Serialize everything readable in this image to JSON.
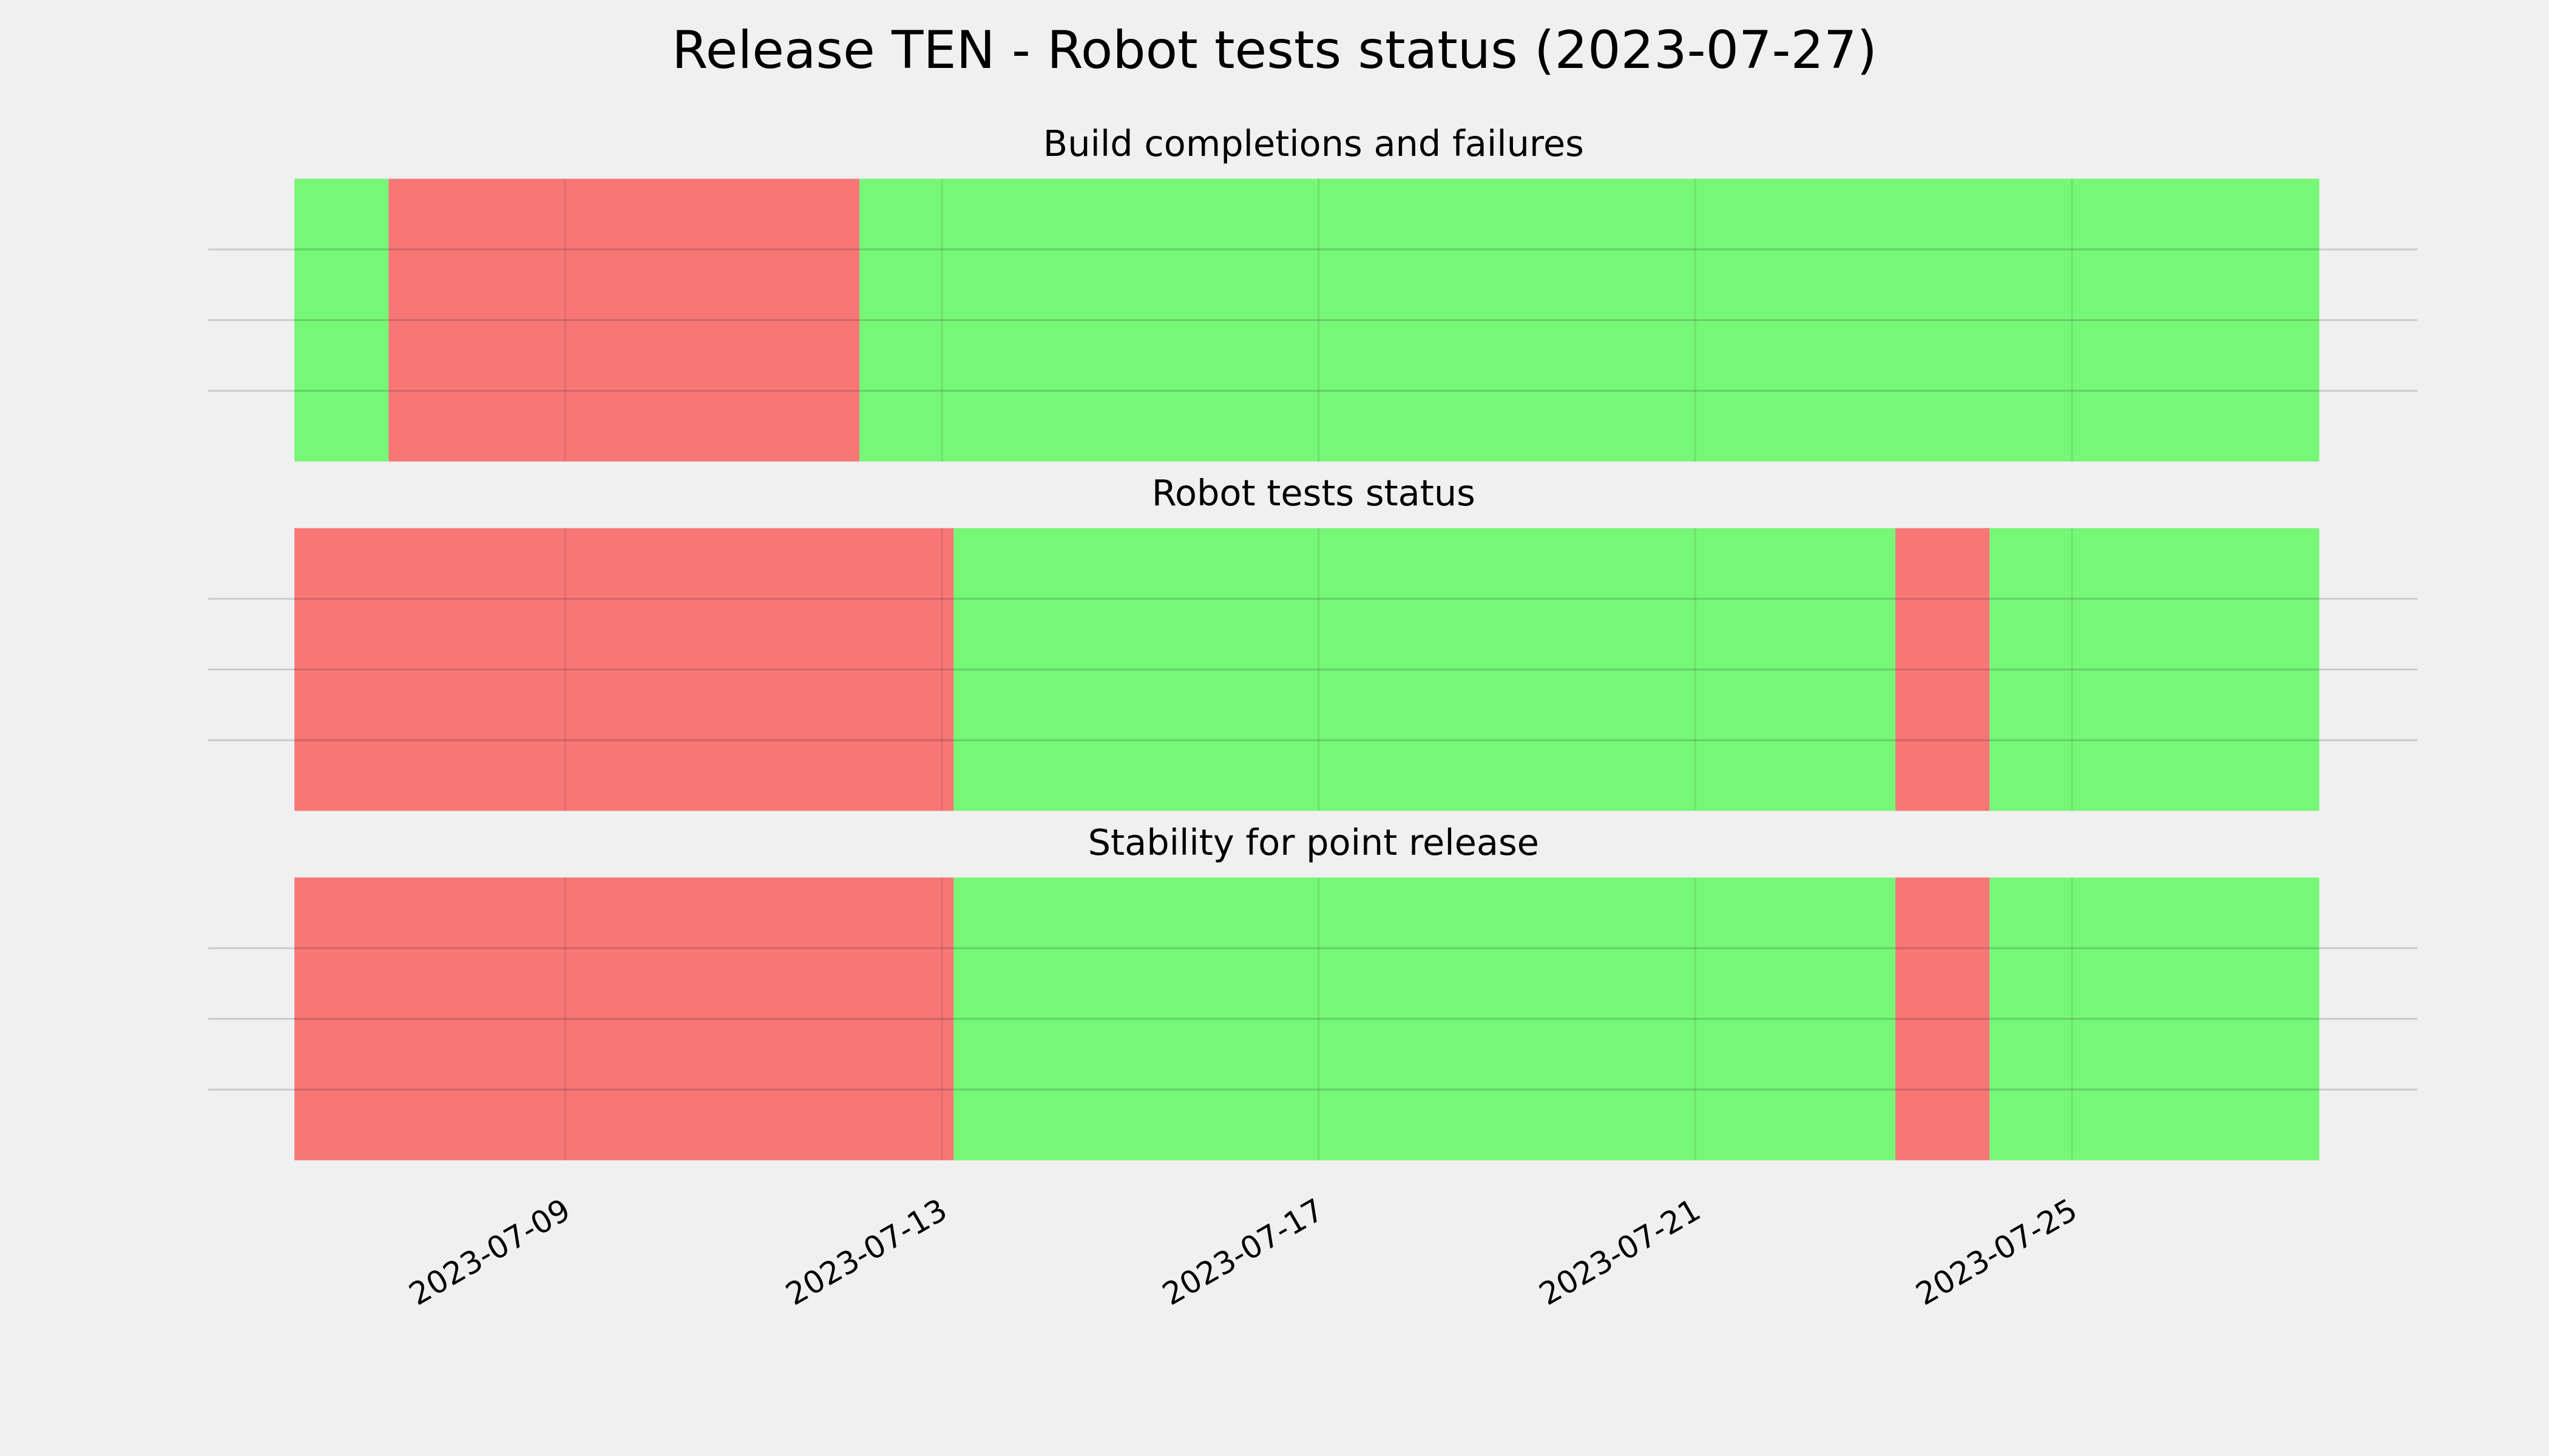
{
  "title": "Release TEN - Robot tests status (2023-07-27)",
  "chart_data": [
    {
      "type": "timeline",
      "title": "Build completions and failures",
      "segments": [
        {
          "start": "2023-07-06T03:00",
          "end": "2023-07-07T03:00",
          "color": "#77f777"
        },
        {
          "start": "2023-07-07T03:00",
          "end": "2023-07-12T03:00",
          "color": "#f77777"
        },
        {
          "start": "2023-07-12T03:00",
          "end": "2023-07-27T15:00",
          "color": "#77f777"
        }
      ],
      "xlim": [
        "2023-07-05T05:00",
        "2023-07-28T16:00"
      ],
      "xticks": [
        "2023-07-09",
        "2023-07-13",
        "2023-07-17",
        "2023-07-21",
        "2023-07-25"
      ],
      "ylim": [
        0,
        1
      ],
      "yticks": [
        0.25,
        0.5,
        0.75
      ],
      "grid": true
    },
    {
      "type": "timeline",
      "title": "Robot tests status",
      "segments": [
        {
          "start": "2023-07-06T03:00",
          "end": "2023-07-13T03:00",
          "color": "#f77777"
        },
        {
          "start": "2023-07-13T03:00",
          "end": "2023-07-23T03:00",
          "color": "#77f777"
        },
        {
          "start": "2023-07-23T03:00",
          "end": "2023-07-24T03:00",
          "color": "#f77777"
        },
        {
          "start": "2023-07-24T03:00",
          "end": "2023-07-27T15:00",
          "color": "#77f777"
        }
      ],
      "xlim": [
        "2023-07-05T05:00",
        "2023-07-28T16:00"
      ],
      "xticks": [
        "2023-07-09",
        "2023-07-13",
        "2023-07-17",
        "2023-07-21",
        "2023-07-25"
      ],
      "ylim": [
        0,
        1
      ],
      "yticks": [
        0.25,
        0.5,
        0.75
      ],
      "grid": true
    },
    {
      "type": "timeline",
      "title": "Stability for point release",
      "segments": [
        {
          "start": "2023-07-06T03:00",
          "end": "2023-07-13T03:00",
          "color": "#f77777"
        },
        {
          "start": "2023-07-13T03:00",
          "end": "2023-07-23T03:00",
          "color": "#77f777"
        },
        {
          "start": "2023-07-23T03:00",
          "end": "2023-07-24T03:00",
          "color": "#f77777"
        },
        {
          "start": "2023-07-24T03:00",
          "end": "2023-07-27T15:00",
          "color": "#77f777"
        }
      ],
      "xlim": [
        "2023-07-05T05:00",
        "2023-07-28T16:00"
      ],
      "xticks": [
        "2023-07-09",
        "2023-07-13",
        "2023-07-17",
        "2023-07-21",
        "2023-07-25"
      ],
      "show_tick_labels": true,
      "ylim": [
        0,
        1
      ],
      "yticks": [
        0.25,
        0.5,
        0.75
      ],
      "grid": true
    }
  ]
}
